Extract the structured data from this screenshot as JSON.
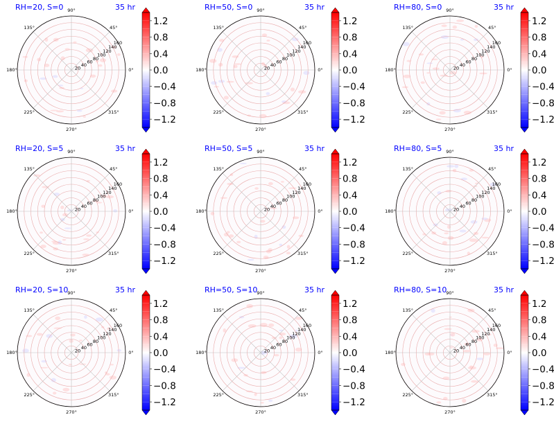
{
  "figure": {
    "colorbar": {
      "ticks": [
        "1.2",
        "0.8",
        "0.4",
        "0.0",
        "−0.4",
        "−0.8",
        "−1.2"
      ],
      "min": -1.4,
      "max": 1.4,
      "colors": {
        "negative": "#0000ff",
        "zero": "#ffffff",
        "positive": "#ff0000"
      }
    },
    "angle_labels": [
      "0°",
      "45°",
      "90°",
      "135°",
      "180°",
      "225°",
      "270°",
      "315°"
    ],
    "radial_labels": [
      "20",
      "40",
      "60",
      "80",
      "100",
      "120",
      "140",
      "160"
    ],
    "time_label": "35 hr"
  },
  "chart_data": [
    {
      "type": "heatmap",
      "projection": "polar",
      "title": "RH=20, S=0",
      "time": "35 hr",
      "r_range": [
        0,
        160
      ]
    },
    {
      "type": "heatmap",
      "projection": "polar",
      "title": "RH=50, S=0",
      "time": "35 hr",
      "r_range": [
        0,
        160
      ]
    },
    {
      "type": "heatmap",
      "projection": "polar",
      "title": "RH=80, S=0",
      "time": "35 hr",
      "r_range": [
        0,
        160
      ]
    },
    {
      "type": "heatmap",
      "projection": "polar",
      "title": "RH=20, S=5",
      "time": "35 hr",
      "r_range": [
        0,
        160
      ]
    },
    {
      "type": "heatmap",
      "projection": "polar",
      "title": "RH=50, S=5",
      "time": "35 hr",
      "r_range": [
        0,
        160
      ]
    },
    {
      "type": "heatmap",
      "projection": "polar",
      "title": "RH=80, S=5",
      "time": "35 hr",
      "r_range": [
        0,
        160
      ]
    },
    {
      "type": "heatmap",
      "projection": "polar",
      "title": "RH=20, S=10",
      "time": "35 hr",
      "r_range": [
        0,
        160
      ]
    },
    {
      "type": "heatmap",
      "projection": "polar",
      "title": "RH=50, S=10",
      "time": "35 hr",
      "r_range": [
        0,
        160
      ]
    },
    {
      "type": "heatmap",
      "projection": "polar",
      "title": "RH=80, S=10",
      "time": "35 hr",
      "r_range": [
        0,
        160
      ]
    }
  ]
}
